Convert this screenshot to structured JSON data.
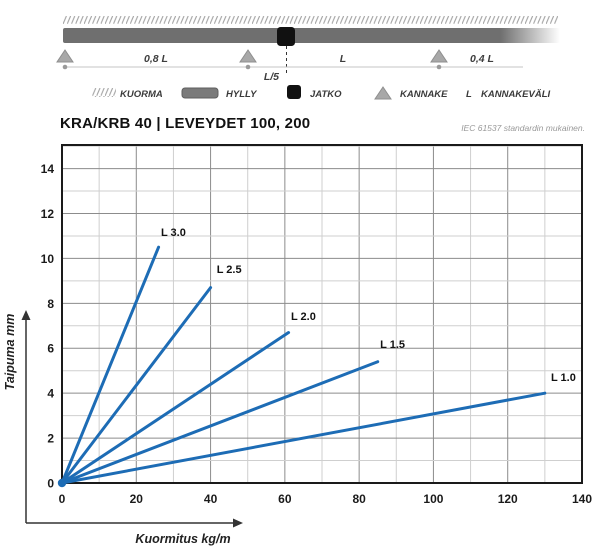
{
  "header": {
    "title": "KRA/KRB 40 | LEVEYDET 100, 200",
    "standard_note": "IEC 61537 standardin mukainen."
  },
  "diagram": {
    "dim_labels": {
      "left_span": "0,8 L",
      "mid_span": "L",
      "right_span": "0,4 L",
      "joint_offset": "L/5"
    },
    "legend": [
      {
        "icon": "load-hatch-icon",
        "label": "KUORMA"
      },
      {
        "icon": "shelf-icon",
        "label": "HYLLY"
      },
      {
        "icon": "joint-icon",
        "label": "JATKO"
      },
      {
        "icon": "bracket-icon",
        "label": "KANNAKE"
      },
      {
        "icon": "length-symbol",
        "symbol": "L",
        "label": "KANNAKEVÄLI"
      }
    ]
  },
  "colors": {
    "line_blue": "#1d6cb5",
    "beam_gray": "#6f6f6f",
    "bracket_gray": "#a8a8a8",
    "joint_black": "#111111"
  },
  "chart_data": {
    "type": "line",
    "xlabel": "Kuormitus kg/m",
    "ylabel": "Taipuma mm",
    "xlim": [
      0,
      140
    ],
    "ylim": [
      0,
      15
    ],
    "x_major_step": 20,
    "x_minor_step": 10,
    "y_major_step": 2,
    "y_minor_step": 1,
    "x_ticks": [
      0,
      20,
      40,
      60,
      80,
      100,
      120,
      140
    ],
    "y_ticks": [
      0,
      2,
      4,
      6,
      8,
      10,
      12,
      14
    ],
    "grid": true,
    "legend_position": "inline-labels",
    "line_color": "#1d6cb5",
    "series": [
      {
        "name": "L 3.0",
        "x": [
          0,
          26
        ],
        "y": [
          0,
          10.5
        ],
        "label_at": [
          30,
          11.0
        ]
      },
      {
        "name": "L 2.5",
        "x": [
          0,
          40
        ],
        "y": [
          0,
          8.7
        ],
        "label_at": [
          45,
          9.35
        ]
      },
      {
        "name": "L 2.0",
        "x": [
          0,
          61
        ],
        "y": [
          0,
          6.7
        ],
        "label_at": [
          65,
          7.25
        ]
      },
      {
        "name": "L 1.5",
        "x": [
          0,
          85
        ],
        "y": [
          0,
          5.4
        ],
        "label_at": [
          89,
          6.0
        ]
      },
      {
        "name": "L 1.0",
        "x": [
          0,
          130
        ],
        "y": [
          0,
          4.0
        ],
        "label_at": [
          135,
          4.55
        ]
      }
    ]
  }
}
